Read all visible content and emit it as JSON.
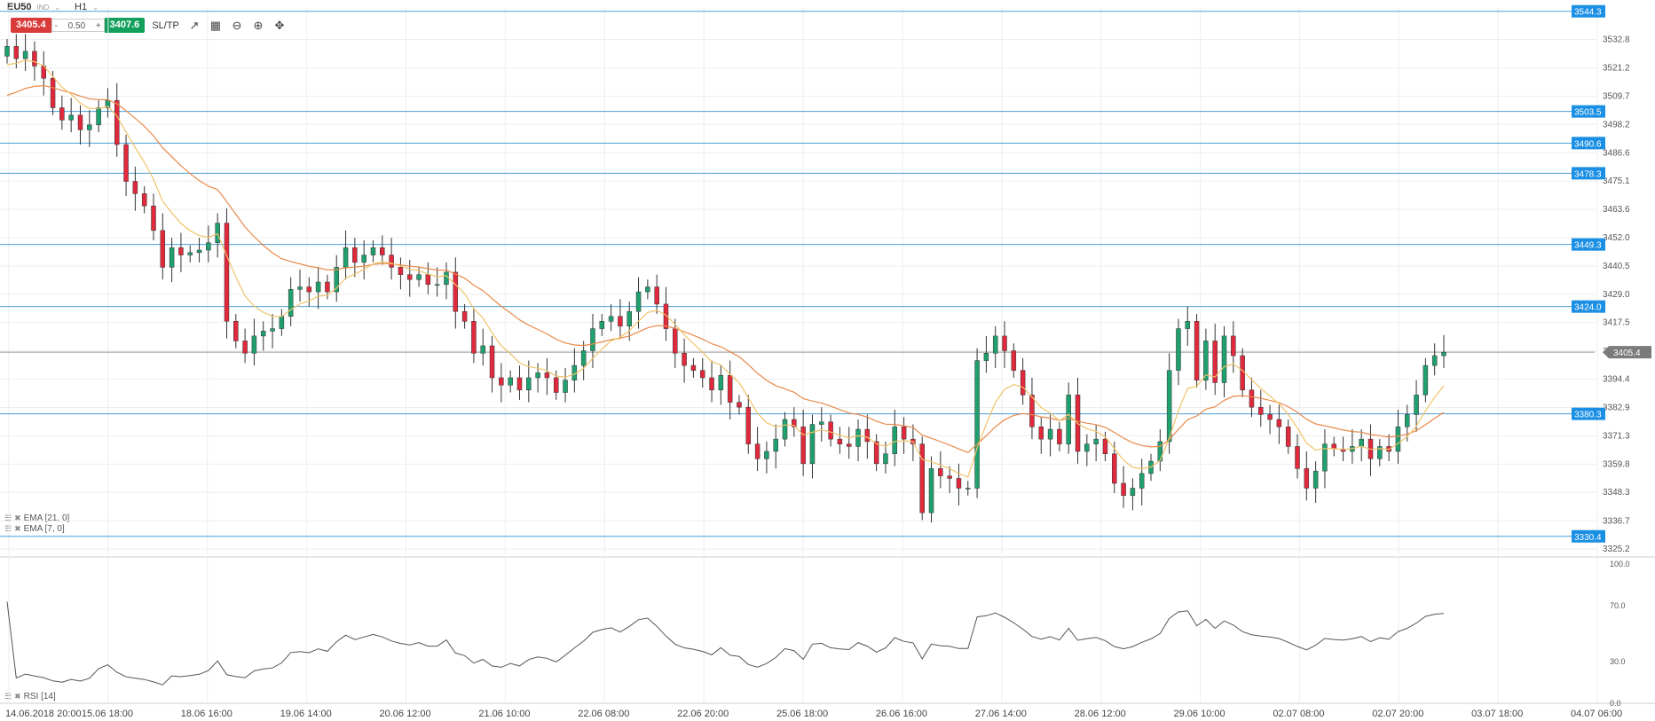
{
  "header": {
    "symbol": "EU50",
    "exchange": "IND",
    "timeframe": "H1",
    "sell_price": "3405.4",
    "lot_minus": "-",
    "lot": "0.50",
    "lot_plus": "+",
    "buy_price": "3407.6",
    "sltp_label": "SL/TP"
  },
  "icons": [
    "line-chart-icon",
    "candles-icon",
    "zoom-out-icon",
    "zoom-in-icon",
    "crosshair-icon"
  ],
  "indicators": {
    "ema21_label": "EMA [21, 0]",
    "ema7_label": "EMA [7, 0]",
    "rsi_label": "RSI [14]"
  },
  "colors": {
    "bull": "#20a06e",
    "bear": "#e0293d",
    "ema21": "#e8894a",
    "ema7": "#f0c36a",
    "level_line": "#4a9fd8",
    "level_tag": "#1a8fe3",
    "price_tag": "#7a7a7a",
    "rsi_line": "#555555",
    "grid": "#eeeeee"
  },
  "chart_data": {
    "type": "candlestick",
    "price_axis": {
      "ticks": [
        "3532.8",
        "3521.2",
        "3509.7",
        "3498.2",
        "3486.6",
        "3475.1",
        "3463.6",
        "3452.0",
        "3440.5",
        "3429.0",
        "3417.5",
        "3405.9",
        "3394.4",
        "3382.9",
        "3371.3",
        "3359.8",
        "3348.3",
        "3336.7",
        "3325.2"
      ],
      "range": [
        3322.0,
        3546.0
      ],
      "current_price": "3405.4",
      "levels": [
        "3544.3",
        "3503.5",
        "3490.6",
        "3478.3",
        "3449.3",
        "3424.0",
        "3380.3",
        "3330.4"
      ]
    },
    "time_axis": [
      "14.06.2018 20:00",
      "15.06 18:00",
      "18.06 16:00",
      "19.06 14:00",
      "20.06 12:00",
      "21.06 10:00",
      "22.06 08:00",
      "22.06 20:00",
      "25.06 18:00",
      "26.06 16:00",
      "27.06 14:00",
      "28.06 12:00",
      "29.06 10:00",
      "02.07 08:00",
      "02.07 20:00",
      "03.07 18:00",
      "04.07 06:00"
    ],
    "rsi_axis": {
      "ticks": [
        "100.0",
        "70.0",
        "30.0",
        "0.0"
      ],
      "range": [
        0,
        100
      ]
    },
    "closes": [
      3530,
      3525,
      3528,
      3522,
      3517,
      3505,
      3500,
      3502,
      3496,
      3498,
      3505,
      3508,
      3490,
      3475,
      3470,
      3465,
      3455,
      3440,
      3448,
      3445,
      3446,
      3447,
      3450,
      3458,
      3418,
      3410,
      3405,
      3412,
      3414,
      3415,
      3420,
      3431,
      3432,
      3430,
      3434,
      3430,
      3440,
      3448,
      3442,
      3445,
      3448,
      3445,
      3440,
      3437,
      3435,
      3437,
      3433,
      3433,
      3438,
      3422,
      3418,
      3405,
      3408,
      3395,
      3392,
      3395,
      3390,
      3395,
      3397,
      3395,
      3389,
      3394,
      3400,
      3406,
      3415,
      3418,
      3420,
      3416,
      3422,
      3430,
      3432,
      3425,
      3415,
      3405,
      3400,
      3398,
      3395,
      3390,
      3396,
      3385,
      3383,
      3368,
      3362,
      3365,
      3370,
      3378,
      3375,
      3360,
      3376,
      3377,
      3370,
      3368,
      3367,
      3374,
      3369,
      3360,
      3364,
      3375,
      3370,
      3368,
      3340,
      3358,
      3355,
      3354,
      3350,
      3350,
      3402,
      3405,
      3412,
      3406,
      3398,
      3388,
      3375,
      3370,
      3374,
      3368,
      3388,
      3365,
      3368,
      3370,
      3364,
      3352,
      3347,
      3350,
      3356,
      3361,
      3369,
      3398,
      3415,
      3418,
      3394,
      3410,
      3393,
      3412,
      3404,
      3390,
      3383,
      3380,
      3378,
      3375,
      3367,
      3358,
      3350,
      3357,
      3368,
      3366,
      3365,
      3367,
      3370,
      3362,
      3367,
      3365,
      3375,
      3380,
      3388,
      3400,
      3404,
      3405.4
    ],
    "ema21_start": 3508,
    "ema7_start": 3520,
    "rsi_start": 73
  }
}
